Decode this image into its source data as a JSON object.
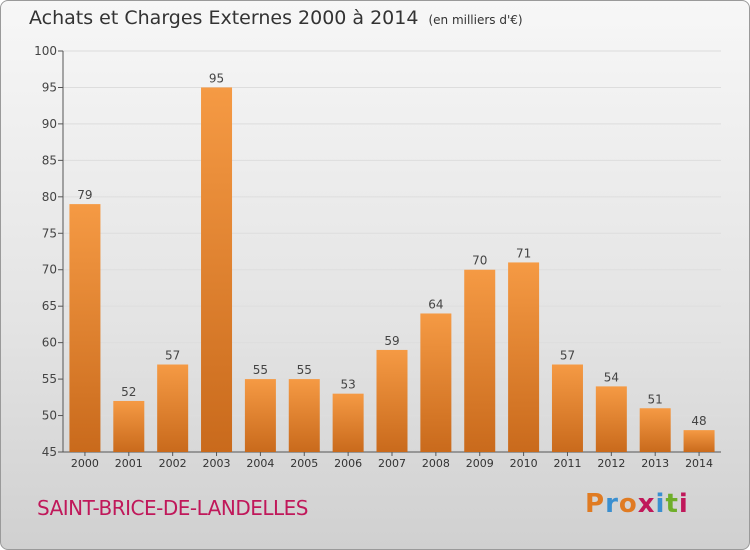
{
  "header": {
    "title": "Achats et Charges Externes 2000 à 2014",
    "subtitle": "(en milliers d'€)"
  },
  "footer": {
    "city": "SAINT-BRICE-DE-LANDELLES",
    "logo_text": "Proxiti",
    "logo_colors": [
      "#e07b22",
      "#3a8fd0",
      "#e07b22",
      "#c0185a",
      "#3a8fd0",
      "#6fae2a",
      "#c0185a"
    ]
  },
  "colors": {
    "bar": "#f59a44",
    "bar_dark": "#c96a1c",
    "axis": "#555555",
    "grid": "#dddddd"
  },
  "chart_data": {
    "type": "bar",
    "categories": [
      "2000",
      "2001",
      "2002",
      "2003",
      "2004",
      "2005",
      "2006",
      "2007",
      "2008",
      "2009",
      "2010",
      "2011",
      "2012",
      "2013",
      "2014"
    ],
    "values": [
      79,
      52,
      57,
      95,
      55,
      55,
      53,
      59,
      64,
      70,
      71,
      57,
      54,
      51,
      48
    ],
    "ylim": [
      45,
      100
    ],
    "yticks": [
      45,
      50,
      55,
      60,
      65,
      70,
      75,
      80,
      85,
      90,
      95,
      100
    ],
    "xlabel": "",
    "ylabel": "",
    "grid": true
  }
}
